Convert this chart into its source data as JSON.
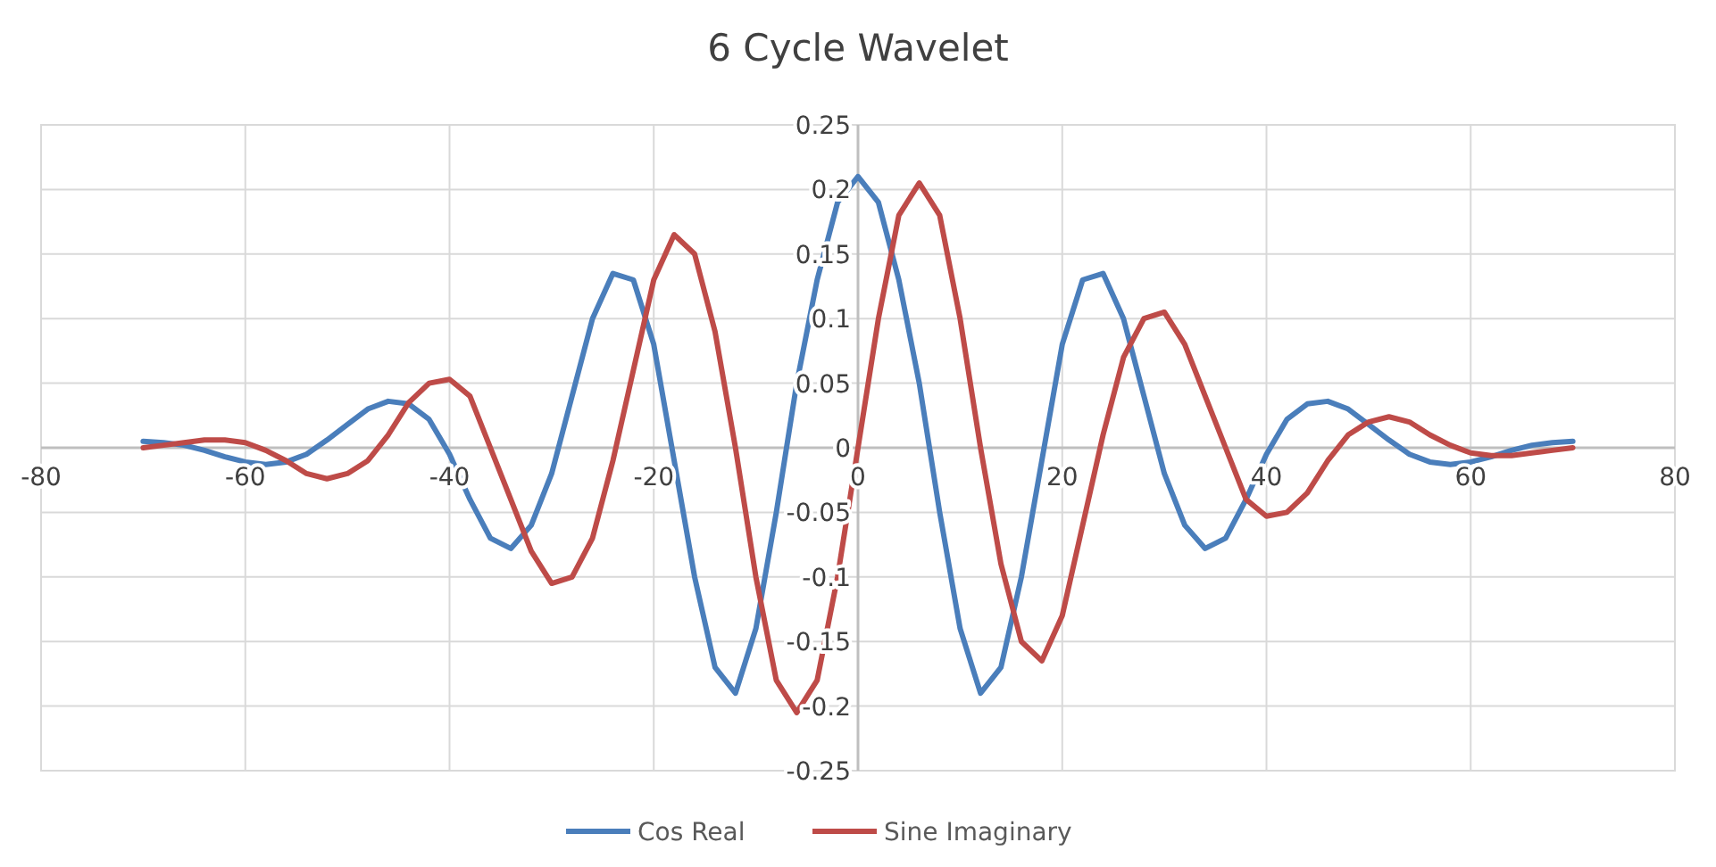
{
  "chart_data": {
    "type": "line",
    "title": "6 Cycle Wavelet",
    "x": [
      -70,
      -68,
      -66,
      -64,
      -62,
      -60,
      -58,
      -56,
      -54,
      -52,
      -50,
      -48,
      -46,
      -44,
      -42,
      -40,
      -38,
      -36,
      -34,
      -32,
      -30,
      -28,
      -26,
      -24,
      -22,
      -20,
      -18,
      -16,
      -14,
      -12,
      -10,
      -8,
      -6,
      -4,
      -2,
      0,
      2,
      4,
      6,
      8,
      10,
      12,
      14,
      16,
      18,
      20,
      22,
      24,
      26,
      28,
      30,
      32,
      34,
      36,
      38,
      40,
      42,
      44,
      46,
      48,
      50,
      52,
      54,
      56,
      58,
      60,
      62,
      64,
      66,
      68,
      70
    ],
    "series": [
      {
        "name": "Cos Real",
        "color": "#4a7ebb",
        "values": [
          0.005,
          0.004,
          0.002,
          -0.002,
          -0.007,
          -0.011,
          -0.013,
          -0.011,
          -0.005,
          0.006,
          0.018,
          0.03,
          0.036,
          0.034,
          0.022,
          -0.005,
          -0.04,
          -0.07,
          -0.078,
          -0.06,
          -0.02,
          0.04,
          0.1,
          0.135,
          0.13,
          0.08,
          -0.01,
          -0.1,
          -0.17,
          -0.19,
          -0.14,
          -0.05,
          0.05,
          0.13,
          0.19,
          0.21,
          0.19,
          0.13,
          0.05,
          -0.05,
          -0.14,
          -0.19,
          -0.17,
          -0.1,
          -0.01,
          0.08,
          0.13,
          0.135,
          0.1,
          0.04,
          -0.02,
          -0.06,
          -0.078,
          -0.07,
          -0.04,
          -0.005,
          0.022,
          0.034,
          0.036,
          0.03,
          0.018,
          0.006,
          -0.005,
          -0.011,
          -0.013,
          -0.011,
          -0.007,
          -0.002,
          0.002,
          0.004,
          0.005
        ]
      },
      {
        "name": "Sine Imaginary",
        "color": "#be4b48",
        "values": [
          0,
          0.002,
          0.004,
          0.006,
          0.006,
          0.004,
          -0.002,
          -0.01,
          -0.02,
          -0.024,
          -0.02,
          -0.01,
          0.01,
          0.035,
          0.05,
          0.053,
          0.04,
          0,
          -0.04,
          -0.08,
          -0.105,
          -0.1,
          -0.07,
          -0.01,
          0.06,
          0.13,
          0.165,
          0.15,
          0.09,
          0,
          -0.1,
          -0.18,
          -0.205,
          -0.18,
          -0.1,
          0,
          0.1,
          0.18,
          0.205,
          0.18,
          0.1,
          0,
          -0.09,
          -0.15,
          -0.165,
          -0.13,
          -0.06,
          0.01,
          0.07,
          0.1,
          0.105,
          0.08,
          0.04,
          0,
          -0.04,
          -0.053,
          -0.05,
          -0.035,
          -0.01,
          0.01,
          0.02,
          0.024,
          0.02,
          0.01,
          0.002,
          -0.004,
          -0.006,
          -0.006,
          -0.004,
          -0.002,
          0
        ]
      }
    ],
    "xlim": [
      -80,
      80
    ],
    "xticks": [
      -80,
      -60,
      -40,
      -20,
      0,
      20,
      40,
      60,
      80
    ],
    "ylim": [
      -0.25,
      0.25
    ],
    "yticks": [
      -0.25,
      -0.2,
      -0.15,
      -0.1,
      -0.05,
      0,
      0.05,
      0.1,
      0.15,
      0.2,
      0.25
    ],
    "grid": true,
    "legend": "bottom",
    "marker": "none",
    "line_style": "solid"
  }
}
